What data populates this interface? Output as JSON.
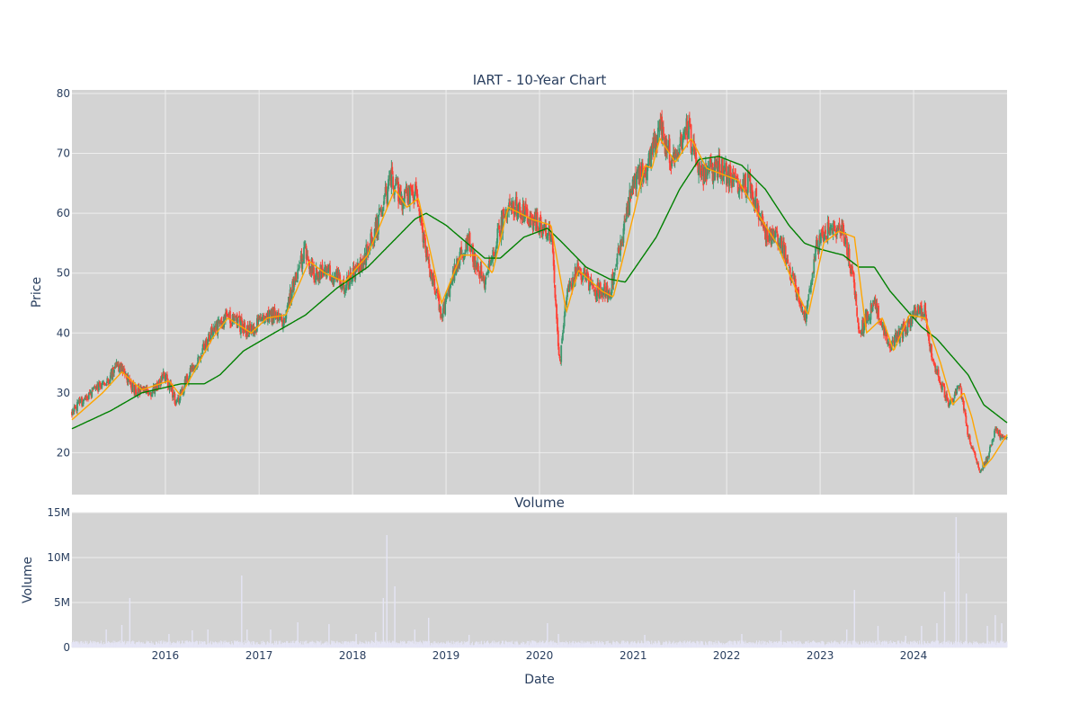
{
  "colors": {
    "plot_bg": "#d3d3d3",
    "grid": "#eeeeee",
    "up": "#3d9970",
    "down": "#ff4136",
    "ma_short": "#ffa500",
    "ma_long": "#008000",
    "volume_bar": "#e5e5f5",
    "text": "#2a3f5f"
  },
  "chart_data": [
    {
      "type": "candlestick",
      "title": "IART - 10-Year Chart",
      "ylabel": "Price",
      "xlabel": "",
      "ylim": [
        13,
        80.6
      ],
      "xlim": [
        "2015-01-01",
        "2024-12-31"
      ],
      "yticks": [
        20,
        30,
        40,
        50,
        60,
        70,
        80
      ],
      "grid": true,
      "price_anchors": [
        [
          "2015-01-02",
          27
        ],
        [
          "2015-03-01",
          29.5
        ],
        [
          "2015-05-01",
          31.5
        ],
        [
          "2015-07-01",
          34.5
        ],
        [
          "2015-09-01",
          30.5
        ],
        [
          "2015-11-01",
          30
        ],
        [
          "2016-01-01",
          33
        ],
        [
          "2016-02-15",
          28
        ],
        [
          "2016-04-01",
          33
        ],
        [
          "2016-07-01",
          40
        ],
        [
          "2016-09-01",
          43
        ],
        [
          "2016-12-01",
          40
        ],
        [
          "2017-02-01",
          43.5
        ],
        [
          "2017-04-01",
          42
        ],
        [
          "2017-05-01",
          46
        ],
        [
          "2017-07-01",
          54
        ],
        [
          "2017-08-01",
          50
        ],
        [
          "2017-10-01",
          50
        ],
        [
          "2017-12-01",
          48
        ],
        [
          "2018-02-01",
          51
        ],
        [
          "2018-04-01",
          57
        ],
        [
          "2018-06-01",
          66
        ],
        [
          "2018-07-15",
          62
        ],
        [
          "2018-09-01",
          64
        ],
        [
          "2018-10-15",
          53
        ],
        [
          "2018-12-15",
          43
        ],
        [
          "2019-02-15",
          52
        ],
        [
          "2019-04-01",
          55
        ],
        [
          "2019-06-01",
          48
        ],
        [
          "2019-07-15",
          55
        ],
        [
          "2019-09-01",
          62
        ],
        [
          "2019-11-01",
          60
        ],
        [
          "2020-01-01",
          58
        ],
        [
          "2020-02-15",
          57
        ],
        [
          "2020-03-20",
          35
        ],
        [
          "2020-04-15",
          46
        ],
        [
          "2020-06-01",
          51
        ],
        [
          "2020-08-01",
          47
        ],
        [
          "2020-10-01",
          47
        ],
        [
          "2020-11-15",
          55
        ],
        [
          "2021-01-01",
          65
        ],
        [
          "2021-03-01",
          68
        ],
        [
          "2021-04-15",
          74
        ],
        [
          "2021-06-01",
          69
        ],
        [
          "2021-08-01",
          74
        ],
        [
          "2021-10-01",
          66
        ],
        [
          "2021-12-01",
          68
        ],
        [
          "2022-02-01",
          65
        ],
        [
          "2022-04-01",
          65
        ],
        [
          "2022-06-01",
          57
        ],
        [
          "2022-08-01",
          55
        ],
        [
          "2022-10-01",
          47
        ],
        [
          "2022-11-01",
          42
        ],
        [
          "2022-12-15",
          54
        ],
        [
          "2023-02-01",
          57
        ],
        [
          "2023-04-01",
          57
        ],
        [
          "2023-05-15",
          48
        ],
        [
          "2023-06-01",
          40
        ],
        [
          "2023-08-01",
          45
        ],
        [
          "2023-10-01",
          38
        ],
        [
          "2023-11-15",
          40
        ],
        [
          "2024-01-01",
          43
        ],
        [
          "2024-02-15",
          44
        ],
        [
          "2024-03-15",
          35
        ],
        [
          "2024-04-15",
          32
        ],
        [
          "2024-05-15",
          28
        ],
        [
          "2024-07-01",
          31
        ],
        [
          "2024-08-01",
          23
        ],
        [
          "2024-09-15",
          17
        ],
        [
          "2024-10-15",
          19
        ],
        [
          "2024-11-15",
          24
        ],
        [
          "2024-12-31",
          22
        ]
      ],
      "ma_short_anchors": [
        [
          "2015-01-01",
          25.5
        ],
        [
          "2015-05-01",
          30
        ],
        [
          "2015-07-15",
          33.5
        ],
        [
          "2015-10-01",
          30.5
        ],
        [
          "2016-01-15",
          32
        ],
        [
          "2016-03-01",
          29.5
        ],
        [
          "2016-07-01",
          39
        ],
        [
          "2016-09-01",
          42.5
        ],
        [
          "2016-12-01",
          40
        ],
        [
          "2017-02-01",
          42.5
        ],
        [
          "2017-04-15",
          43
        ],
        [
          "2017-07-15",
          52
        ],
        [
          "2017-09-15",
          50
        ],
        [
          "2017-12-01",
          48.5
        ],
        [
          "2018-03-01",
          53
        ],
        [
          "2018-06-15",
          64
        ],
        [
          "2018-08-01",
          61
        ],
        [
          "2018-09-15",
          62.5
        ],
        [
          "2018-12-15",
          45
        ],
        [
          "2019-03-01",
          53
        ],
        [
          "2019-05-01",
          53
        ],
        [
          "2019-07-01",
          50
        ],
        [
          "2019-09-01",
          61
        ],
        [
          "2019-12-01",
          59
        ],
        [
          "2020-02-15",
          58
        ],
        [
          "2020-04-15",
          43.5
        ],
        [
          "2020-06-01",
          50.5
        ],
        [
          "2020-09-01",
          47
        ],
        [
          "2020-10-15",
          46
        ],
        [
          "2020-12-01",
          54
        ],
        [
          "2021-01-15",
          62
        ],
        [
          "2021-02-15",
          68
        ],
        [
          "2021-03-15",
          67.5
        ],
        [
          "2021-04-15",
          72.5
        ],
        [
          "2021-06-15",
          68.5
        ],
        [
          "2021-08-15",
          72.5
        ],
        [
          "2021-10-15",
          67.5
        ],
        [
          "2021-12-15",
          66.5
        ],
        [
          "2022-02-15",
          65.5
        ],
        [
          "2022-05-01",
          60
        ],
        [
          "2022-07-15",
          55
        ],
        [
          "2022-10-01",
          47
        ],
        [
          "2022-11-15",
          43
        ],
        [
          "2023-01-15",
          55
        ],
        [
          "2023-03-15",
          57
        ],
        [
          "2023-05-15",
          56
        ],
        [
          "2023-07-01",
          40
        ],
        [
          "2023-09-01",
          42.5
        ],
        [
          "2023-10-15",
          37
        ],
        [
          "2023-12-15",
          43
        ],
        [
          "2024-02-15",
          42.5
        ],
        [
          "2024-04-15",
          35
        ],
        [
          "2024-06-01",
          28
        ],
        [
          "2024-07-15",
          30
        ],
        [
          "2024-08-15",
          26
        ],
        [
          "2024-10-01",
          17.5
        ],
        [
          "2024-11-01",
          19
        ],
        [
          "2024-12-31",
          23
        ]
      ],
      "ma_long_anchors": [
        [
          "2015-01-01",
          24
        ],
        [
          "2015-06-01",
          27
        ],
        [
          "2015-10-01",
          30
        ],
        [
          "2016-03-01",
          31.5
        ],
        [
          "2016-06-01",
          31.5
        ],
        [
          "2016-08-01",
          33
        ],
        [
          "2016-11-01",
          37
        ],
        [
          "2017-03-01",
          40
        ],
        [
          "2017-07-01",
          43
        ],
        [
          "2017-11-01",
          47.5
        ],
        [
          "2018-03-01",
          51
        ],
        [
          "2018-06-01",
          55
        ],
        [
          "2018-09-01",
          59
        ],
        [
          "2018-10-15",
          60
        ],
        [
          "2019-01-01",
          58
        ],
        [
          "2019-06-01",
          52.5
        ],
        [
          "2019-08-01",
          52.5
        ],
        [
          "2019-11-01",
          56
        ],
        [
          "2020-02-01",
          57.5
        ],
        [
          "2020-04-01",
          55
        ],
        [
          "2020-07-01",
          51
        ],
        [
          "2020-10-01",
          49
        ],
        [
          "2020-12-01",
          48.5
        ],
        [
          "2021-04-01",
          56
        ],
        [
          "2021-07-01",
          64
        ],
        [
          "2021-09-15",
          69
        ],
        [
          "2021-12-01",
          69.5
        ],
        [
          "2022-03-01",
          68
        ],
        [
          "2022-06-01",
          64
        ],
        [
          "2022-09-01",
          58
        ],
        [
          "2022-11-01",
          55
        ],
        [
          "2023-01-01",
          54
        ],
        [
          "2023-04-01",
          53
        ],
        [
          "2023-06-01",
          51
        ],
        [
          "2023-08-01",
          51
        ],
        [
          "2023-10-01",
          47
        ],
        [
          "2023-12-01",
          44
        ],
        [
          "2024-02-01",
          41
        ],
        [
          "2024-04-01",
          39
        ],
        [
          "2024-06-01",
          36
        ],
        [
          "2024-08-01",
          33
        ],
        [
          "2024-10-01",
          28
        ],
        [
          "2024-12-31",
          25
        ]
      ]
    },
    {
      "type": "bar",
      "title": "Volume",
      "ylabel": "Volume",
      "xlabel": "Date",
      "ylim": [
        0,
        15000000
      ],
      "yticks": [
        0,
        5000000,
        10000000,
        15000000
      ],
      "ytick_labels": [
        "0",
        "5M",
        "10M",
        "15M"
      ],
      "xticks": [
        "2016-01-01",
        "2017-01-01",
        "2018-01-01",
        "2019-01-01",
        "2020-01-01",
        "2021-01-01",
        "2022-01-01",
        "2023-01-01",
        "2024-01-01"
      ],
      "xtick_labels": [
        "2016",
        "2017",
        "2018",
        "2019",
        "2020",
        "2021",
        "2022",
        "2023",
        "2024"
      ],
      "grid": true,
      "base_level": 600000,
      "spikes": [
        [
          "2015-05-15",
          2000000
        ],
        [
          "2015-07-15",
          2500000
        ],
        [
          "2015-08-15",
          5500000
        ],
        [
          "2016-01-15",
          1500000
        ],
        [
          "2016-04-15",
          1900000
        ],
        [
          "2016-06-15",
          2000000
        ],
        [
          "2016-10-25",
          8000000
        ],
        [
          "2016-11-15",
          2000000
        ],
        [
          "2017-02-15",
          2000000
        ],
        [
          "2017-06-01",
          2800000
        ],
        [
          "2017-10-01",
          2600000
        ],
        [
          "2018-01-15",
          1500000
        ],
        [
          "2018-04-01",
          1700000
        ],
        [
          "2018-05-01",
          5500000
        ],
        [
          "2018-05-15",
          12500000
        ],
        [
          "2018-06-15",
          6800000
        ],
        [
          "2018-09-01",
          2000000
        ],
        [
          "2018-10-25",
          3300000
        ],
        [
          "2019-04-01",
          1400000
        ],
        [
          "2020-02-01",
          2700000
        ],
        [
          "2020-03-15",
          1500000
        ],
        [
          "2021-02-15",
          1400000
        ],
        [
          "2022-03-01",
          1500000
        ],
        [
          "2022-08-01",
          1900000
        ],
        [
          "2023-04-15",
          2000000
        ],
        [
          "2023-05-15",
          6400000
        ],
        [
          "2023-08-15",
          2400000
        ],
        [
          "2023-12-01",
          1300000
        ],
        [
          "2024-02-01",
          2400000
        ],
        [
          "2024-04-01",
          2700000
        ],
        [
          "2024-05-01",
          6200000
        ],
        [
          "2024-06-15",
          14500000
        ],
        [
          "2024-06-25",
          10500000
        ],
        [
          "2024-07-25",
          6000000
        ],
        [
          "2024-10-15",
          2400000
        ],
        [
          "2024-11-15",
          3600000
        ],
        [
          "2024-12-10",
          2700000
        ]
      ]
    }
  ]
}
